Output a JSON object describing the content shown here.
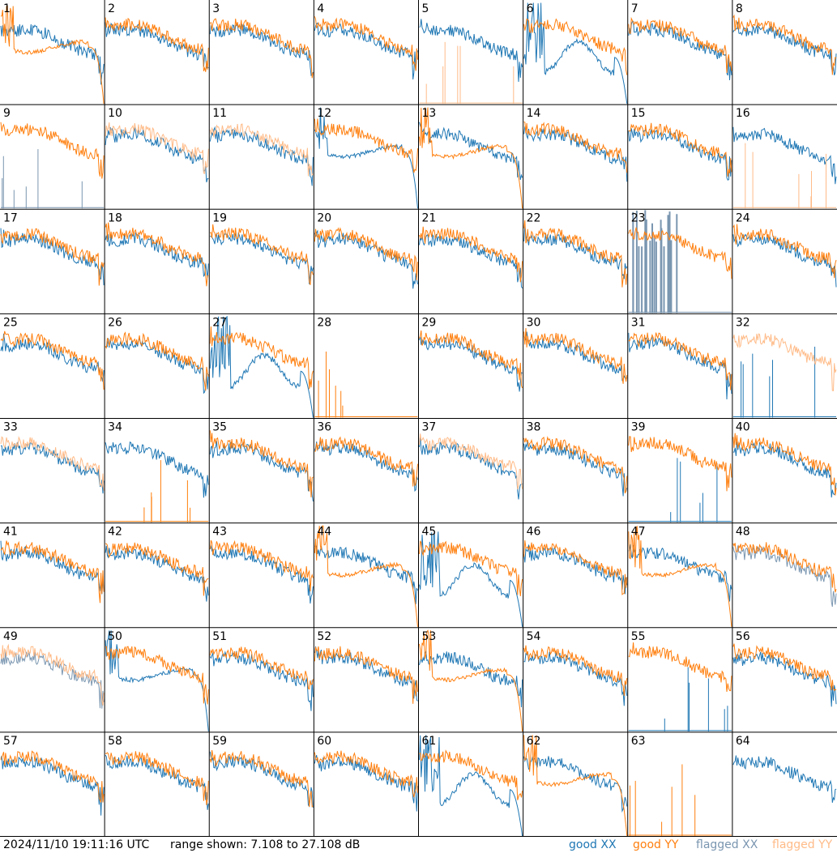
{
  "footer": {
    "timestamp": "2024/11/10 19:11:16 UTC",
    "range_text": "range shown: 7.108 to 27.108 dB",
    "legend": [
      "good XX",
      "good YY",
      "flagged XX",
      "flagged YY"
    ]
  },
  "colors": {
    "good_xx": "#1f77b4",
    "good_yy": "#ff7f0e",
    "flagged_xx": "#7a96b0",
    "flagged_yy": "#ffbb88",
    "grid_line": "#000000",
    "background": "#ffffff"
  },
  "chart_data": {
    "type": "line",
    "title": "",
    "description_units": "dB",
    "ylim": [
      7.108,
      27.108
    ],
    "x": "channel index (unlabeled)",
    "layout": "8x8 small multiples",
    "panels": [
      {
        "id": "1",
        "xx": "good",
        "yy": "good",
        "xx_shape": "normal",
        "yy_shape": "droop"
      },
      {
        "id": "2",
        "xx": "good",
        "yy": "good",
        "xx_shape": "normal",
        "yy_shape": "normal"
      },
      {
        "id": "3",
        "xx": "good",
        "yy": "good",
        "xx_shape": "normal",
        "yy_shape": "normal"
      },
      {
        "id": "4",
        "xx": "good",
        "yy": "good",
        "xx_shape": "normal",
        "yy_shape": "normal"
      },
      {
        "id": "5",
        "xx": "good",
        "yy": "flagged",
        "xx_shape": "normal",
        "yy_shape": "spikes"
      },
      {
        "id": "6",
        "xx": "good",
        "yy": "good",
        "xx_shape": "wave",
        "yy_shape": "normal"
      },
      {
        "id": "7",
        "xx": "good",
        "yy": "good",
        "xx_shape": "normal",
        "yy_shape": "normal"
      },
      {
        "id": "8",
        "xx": "good",
        "yy": "good",
        "xx_shape": "normal",
        "yy_shape": "normal"
      },
      {
        "id": "9",
        "xx": "flagged",
        "yy": "good",
        "xx_shape": "spikes",
        "yy_shape": "normal"
      },
      {
        "id": "10",
        "xx": "good",
        "yy": "flagged",
        "xx_shape": "normal",
        "yy_shape": "normal"
      },
      {
        "id": "11",
        "xx": "good",
        "yy": "flagged",
        "xx_shape": "normal",
        "yy_shape": "normal"
      },
      {
        "id": "12",
        "xx": "good",
        "yy": "good",
        "xx_shape": "droop",
        "yy_shape": "normal"
      },
      {
        "id": "13",
        "xx": "good",
        "yy": "good",
        "xx_shape": "normal",
        "yy_shape": "droop"
      },
      {
        "id": "14",
        "xx": "good",
        "yy": "good",
        "xx_shape": "normal",
        "yy_shape": "normal"
      },
      {
        "id": "15",
        "xx": "good",
        "yy": "good",
        "xx_shape": "normal",
        "yy_shape": "normal"
      },
      {
        "id": "16",
        "xx": "good",
        "yy": "flagged",
        "xx_shape": "normal",
        "yy_shape": "spikes"
      },
      {
        "id": "17",
        "xx": "good",
        "yy": "good",
        "xx_shape": "normal",
        "yy_shape": "normal"
      },
      {
        "id": "18",
        "xx": "good",
        "yy": "good",
        "xx_shape": "normal",
        "yy_shape": "normal"
      },
      {
        "id": "19",
        "xx": "good",
        "yy": "good",
        "xx_shape": "normal",
        "yy_shape": "normal"
      },
      {
        "id": "20",
        "xx": "good",
        "yy": "good",
        "xx_shape": "normal",
        "yy_shape": "normal"
      },
      {
        "id": "21",
        "xx": "good",
        "yy": "good",
        "xx_shape": "normal",
        "yy_shape": "normal"
      },
      {
        "id": "22",
        "xx": "good",
        "yy": "good",
        "xx_shape": "normal",
        "yy_shape": "normal"
      },
      {
        "id": "23",
        "xx": "flagged",
        "yy": "good",
        "xx_shape": "noise",
        "yy_shape": "normal"
      },
      {
        "id": "24",
        "xx": "good",
        "yy": "good",
        "xx_shape": "normal",
        "yy_shape": "normal"
      },
      {
        "id": "25",
        "xx": "good",
        "yy": "good",
        "xx_shape": "normal",
        "yy_shape": "normal"
      },
      {
        "id": "26",
        "xx": "good",
        "yy": "good",
        "xx_shape": "normal",
        "yy_shape": "normal"
      },
      {
        "id": "27",
        "xx": "good",
        "yy": "good",
        "xx_shape": "wave",
        "yy_shape": "normal"
      },
      {
        "id": "28",
        "xx": "good",
        "yy": "good",
        "xx_shape": "none",
        "yy_shape": "spikes"
      },
      {
        "id": "29",
        "xx": "good",
        "yy": "good",
        "xx_shape": "normal",
        "yy_shape": "normal"
      },
      {
        "id": "30",
        "xx": "good",
        "yy": "good",
        "xx_shape": "normal",
        "yy_shape": "normal"
      },
      {
        "id": "31",
        "xx": "good",
        "yy": "good",
        "xx_shape": "normal",
        "yy_shape": "normal"
      },
      {
        "id": "32",
        "xx": "good",
        "yy": "flagged",
        "xx_shape": "spikes",
        "yy_shape": "normal"
      },
      {
        "id": "33",
        "xx": "good",
        "yy": "flagged",
        "xx_shape": "normal",
        "yy_shape": "normal"
      },
      {
        "id": "34",
        "xx": "good",
        "yy": "good",
        "xx_shape": "normal",
        "yy_shape": "spikes"
      },
      {
        "id": "35",
        "xx": "good",
        "yy": "good",
        "xx_shape": "normal",
        "yy_shape": "normal"
      },
      {
        "id": "36",
        "xx": "good",
        "yy": "good",
        "xx_shape": "normal",
        "yy_shape": "normal"
      },
      {
        "id": "37",
        "xx": "good",
        "yy": "flagged",
        "xx_shape": "normal",
        "yy_shape": "normal"
      },
      {
        "id": "38",
        "xx": "good",
        "yy": "good",
        "xx_shape": "normal",
        "yy_shape": "normal"
      },
      {
        "id": "39",
        "xx": "good",
        "yy": "good",
        "xx_shape": "spikes",
        "yy_shape": "normal"
      },
      {
        "id": "40",
        "xx": "good",
        "yy": "good",
        "xx_shape": "normal",
        "yy_shape": "normal"
      },
      {
        "id": "41",
        "xx": "good",
        "yy": "good",
        "xx_shape": "normal",
        "yy_shape": "normal"
      },
      {
        "id": "42",
        "xx": "good",
        "yy": "good",
        "xx_shape": "normal",
        "yy_shape": "normal"
      },
      {
        "id": "43",
        "xx": "good",
        "yy": "good",
        "xx_shape": "normal",
        "yy_shape": "normal"
      },
      {
        "id": "44",
        "xx": "good",
        "yy": "good",
        "xx_shape": "normal",
        "yy_shape": "droop"
      },
      {
        "id": "45",
        "xx": "good",
        "yy": "good",
        "xx_shape": "wave",
        "yy_shape": "normal"
      },
      {
        "id": "46",
        "xx": "good",
        "yy": "good",
        "xx_shape": "normal",
        "yy_shape": "normal"
      },
      {
        "id": "47",
        "xx": "good",
        "yy": "good",
        "xx_shape": "normal",
        "yy_shape": "droop"
      },
      {
        "id": "48",
        "xx": "flagged",
        "yy": "good",
        "xx_shape": "normal",
        "yy_shape": "normal"
      },
      {
        "id": "49",
        "xx": "flagged",
        "yy": "flagged",
        "xx_shape": "normal",
        "yy_shape": "normal"
      },
      {
        "id": "50",
        "xx": "good",
        "yy": "good",
        "xx_shape": "droop",
        "yy_shape": "normal"
      },
      {
        "id": "51",
        "xx": "good",
        "yy": "good",
        "xx_shape": "normal",
        "yy_shape": "normal"
      },
      {
        "id": "52",
        "xx": "good",
        "yy": "good",
        "xx_shape": "normal",
        "yy_shape": "normal"
      },
      {
        "id": "53",
        "xx": "good",
        "yy": "good",
        "xx_shape": "normal",
        "yy_shape": "droop"
      },
      {
        "id": "54",
        "xx": "good",
        "yy": "good",
        "xx_shape": "normal",
        "yy_shape": "normal"
      },
      {
        "id": "55",
        "xx": "good",
        "yy": "good",
        "xx_shape": "spikes",
        "yy_shape": "normal"
      },
      {
        "id": "56",
        "xx": "good",
        "yy": "good",
        "xx_shape": "normal",
        "yy_shape": "normal"
      },
      {
        "id": "57",
        "xx": "good",
        "yy": "good",
        "xx_shape": "normal",
        "yy_shape": "normal"
      },
      {
        "id": "58",
        "xx": "good",
        "yy": "good",
        "xx_shape": "normal",
        "yy_shape": "normal"
      },
      {
        "id": "59",
        "xx": "good",
        "yy": "good",
        "xx_shape": "normal",
        "yy_shape": "normal"
      },
      {
        "id": "60",
        "xx": "good",
        "yy": "good",
        "xx_shape": "normal",
        "yy_shape": "normal"
      },
      {
        "id": "61",
        "xx": "good",
        "yy": "good",
        "xx_shape": "wave",
        "yy_shape": "normal"
      },
      {
        "id": "62",
        "xx": "good",
        "yy": "good",
        "xx_shape": "normal",
        "yy_shape": "droop"
      },
      {
        "id": "63",
        "xx": "good",
        "yy": "good",
        "xx_shape": "none",
        "yy_shape": "spikes"
      },
      {
        "id": "64",
        "xx": "good",
        "yy": "good",
        "xx_shape": "normal",
        "yy_shape": "none"
      }
    ]
  }
}
